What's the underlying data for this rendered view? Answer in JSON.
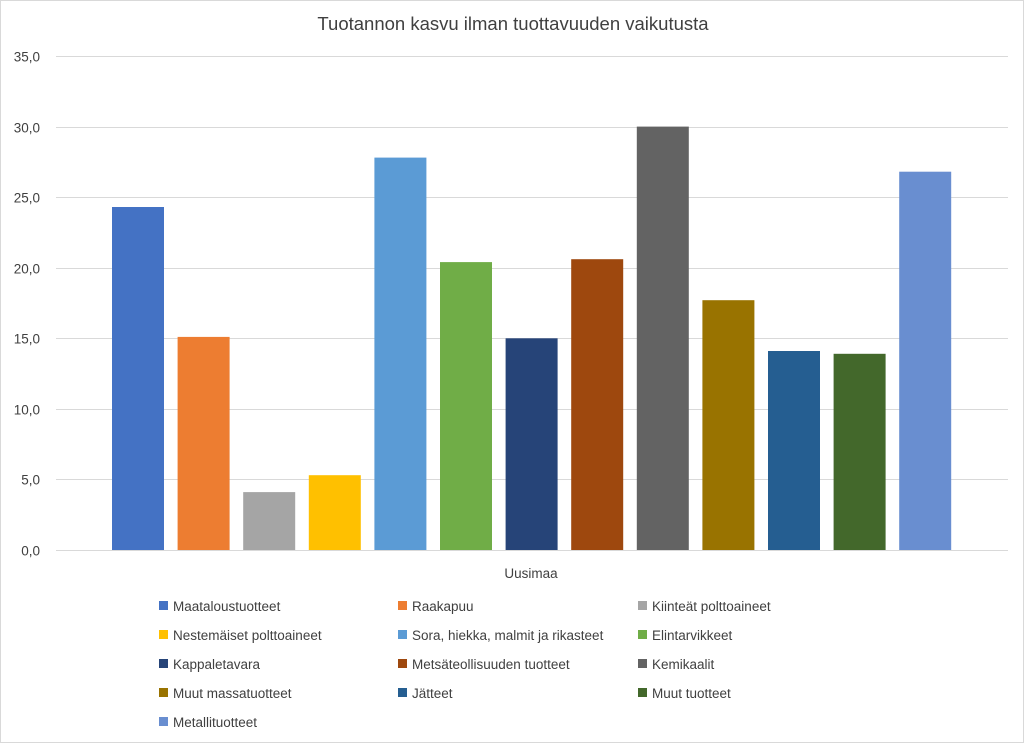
{
  "chart_data": {
    "type": "bar",
    "title": "Tuotannon  kasvu ilman tuottavuuden vaikutusta",
    "categories": [
      "Uusimaa"
    ],
    "xlabel": "",
    "ylabel": "",
    "ylim": [
      0,
      35
    ],
    "yticks": [
      "0,0",
      "5,0",
      "10,0",
      "15,0",
      "20,0",
      "25,0",
      "30,0",
      "35,0"
    ],
    "ytick_values": [
      0,
      5,
      10,
      15,
      20,
      25,
      30,
      35
    ],
    "grid": true,
    "legend_position": "bottom",
    "series": [
      {
        "name": "Maataloustuotteet",
        "values": [
          24.3
        ],
        "color": "#4472C4"
      },
      {
        "name": "Raakapuu",
        "values": [
          15.1
        ],
        "color": "#ED7D31"
      },
      {
        "name": "Kiinteät polttoaineet",
        "values": [
          4.1
        ],
        "color": "#A5A5A5"
      },
      {
        "name": "Nestemäiset polttoaineet",
        "values": [
          5.3
        ],
        "color": "#FFC000"
      },
      {
        "name": "Sora, hiekka, malmit ja rikasteet",
        "values": [
          27.8
        ],
        "color": "#5B9BD5"
      },
      {
        "name": "Elintarvikkeet",
        "values": [
          20.4
        ],
        "color": "#70AD47"
      },
      {
        "name": "Kappaletavara",
        "values": [
          15.0
        ],
        "color": "#264478"
      },
      {
        "name": "Metsäteollisuuden tuotteet",
        "values": [
          20.6
        ],
        "color": "#9E480E"
      },
      {
        "name": "Kemikaalit",
        "values": [
          30.0
        ],
        "color": "#636363"
      },
      {
        "name": "Muut massatuotteet",
        "values": [
          17.7
        ],
        "color": "#997300"
      },
      {
        "name": "Jätteet",
        "values": [
          14.1
        ],
        "color": "#255E91"
      },
      {
        "name": "Muut tuotteet",
        "values": [
          13.9
        ],
        "color": "#43682B"
      },
      {
        "name": "Metallituotteet",
        "values": [
          26.8
        ],
        "color": "#698ED0"
      }
    ]
  }
}
